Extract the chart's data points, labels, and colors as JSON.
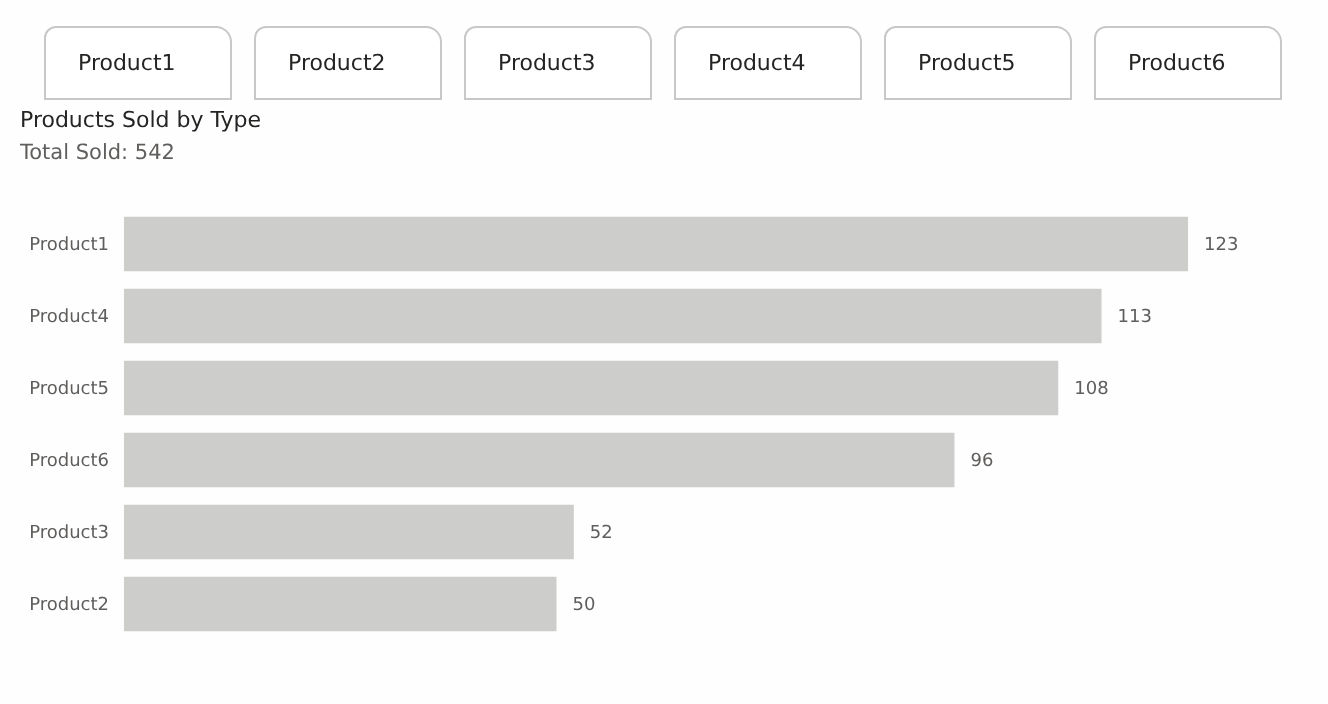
{
  "chart_data": {
    "type": "bar",
    "orientation": "horizontal",
    "title": "Products Sold by Type",
    "subtitle": "Total Sold: 542",
    "categories": [
      "Product1",
      "Product4",
      "Product5",
      "Product6",
      "Product3",
      "Product2"
    ],
    "values": [
      123,
      113,
      108,
      96,
      52,
      50
    ],
    "color": "#cdcdcc",
    "data_labels": true,
    "annotations": [
      "Product1",
      "Product2",
      "Product3",
      "Product4",
      "Product5",
      "Product6"
    ]
  }
}
